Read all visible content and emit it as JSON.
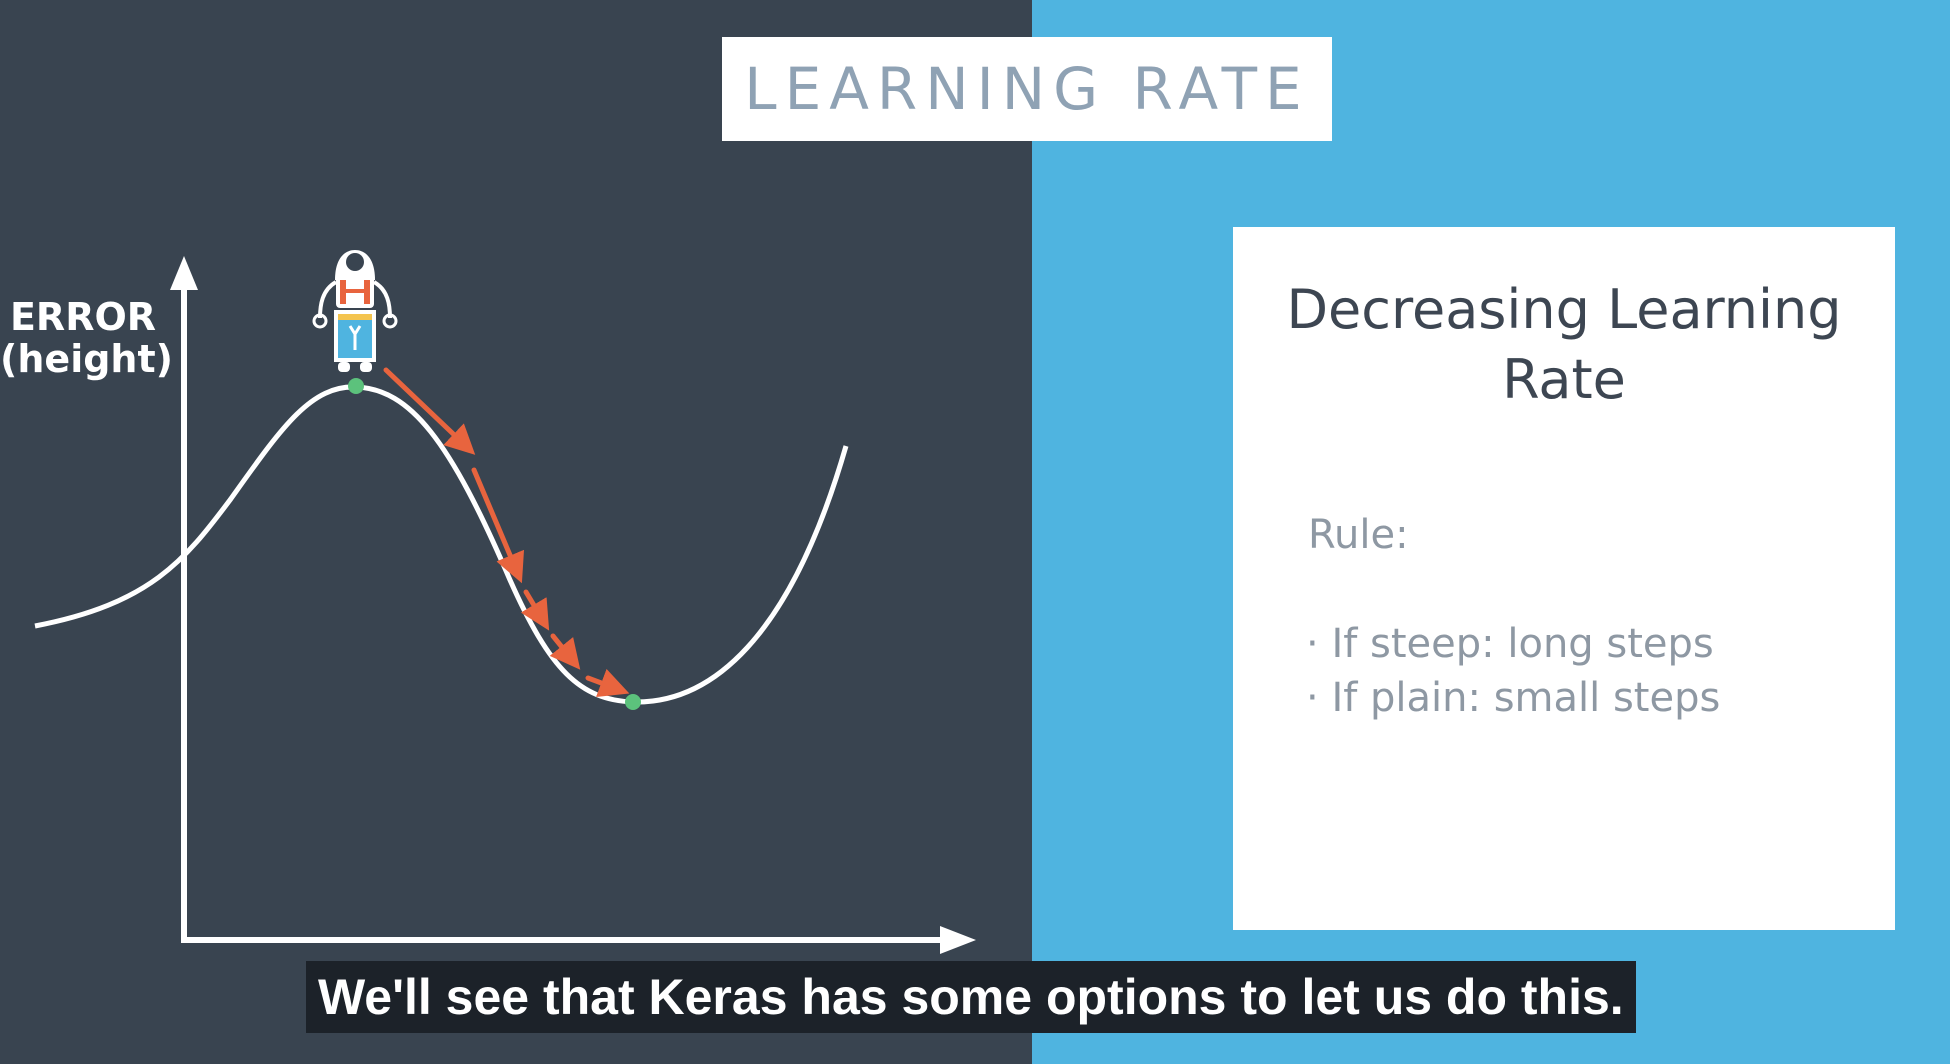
{
  "colors": {
    "left_background": "#394450",
    "right_background": "#4fb4e0",
    "curve": "#ffffff",
    "arrows": "#e8643e",
    "markers": "#5cc27c"
  },
  "title": "LEARNING RATE",
  "diagram": {
    "y_axis_label_line1": "ERROR",
    "y_axis_label_line2": "(height)",
    "icons": [
      "robot-icon",
      "start-point-marker",
      "minimum-point-marker",
      "gradient-step-arrows"
    ]
  },
  "card": {
    "title_line1": "Decreasing Learning",
    "title_line2": "Rate",
    "rule_label": "Rule:",
    "rules": [
      "If steep: long steps",
      "If plain: small steps"
    ]
  },
  "caption": "We'll see that Keras has some options to let us do this."
}
